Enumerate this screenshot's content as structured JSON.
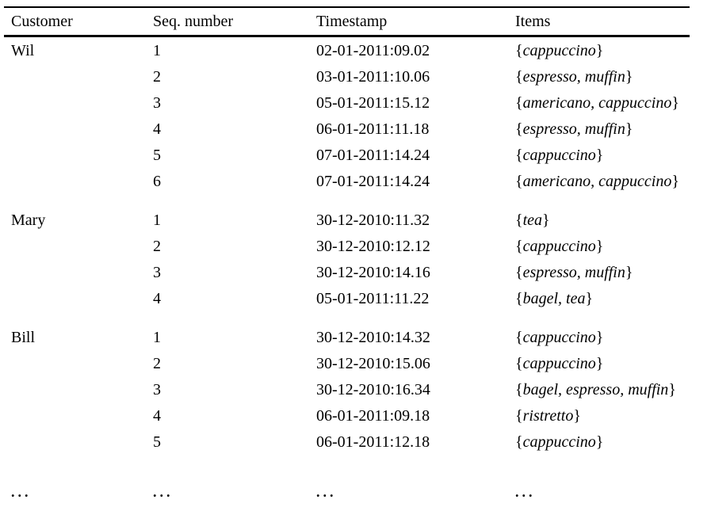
{
  "page": {
    "background": "#ffffff",
    "text_color": "#000000",
    "rule_color": "#000000"
  },
  "table": {
    "columns": [
      {
        "key": "customer",
        "label": "Customer"
      },
      {
        "key": "seq",
        "label": "Seq. number"
      },
      {
        "key": "timestamp",
        "label": "Timestamp"
      },
      {
        "key": "items",
        "label": "Items"
      }
    ],
    "brace_open": "{",
    "brace_close": "}",
    "groups": [
      {
        "customer": "Wil",
        "rows": [
          {
            "seq": "1",
            "timestamp": "02-01-2011:09.02",
            "items": "cappuccino"
          },
          {
            "seq": "2",
            "timestamp": "03-01-2011:10.06",
            "items": "espresso, muffin"
          },
          {
            "seq": "3",
            "timestamp": "05-01-2011:15.12",
            "items": "americano, cappuccino"
          },
          {
            "seq": "4",
            "timestamp": "06-01-2011:11.18",
            "items": "espresso, muffin"
          },
          {
            "seq": "5",
            "timestamp": "07-01-2011:14.24",
            "items": "cappuccino"
          },
          {
            "seq": "6",
            "timestamp": "07-01-2011:14.24",
            "items": "americano, cappuccino"
          }
        ]
      },
      {
        "customer": "Mary",
        "rows": [
          {
            "seq": "1",
            "timestamp": "30-12-2010:11.32",
            "items": "tea"
          },
          {
            "seq": "2",
            "timestamp": "30-12-2010:12.12",
            "items": "cappuccino"
          },
          {
            "seq": "3",
            "timestamp": "30-12-2010:14.16",
            "items": "espresso, muffin"
          },
          {
            "seq": "4",
            "timestamp": "05-01-2011:11.22",
            "items": "bagel, tea"
          }
        ]
      },
      {
        "customer": "Bill",
        "rows": [
          {
            "seq": "1",
            "timestamp": "30-12-2010:14.32",
            "items": "cappuccino"
          },
          {
            "seq": "2",
            "timestamp": "30-12-2010:15.06",
            "items": "cappuccino"
          },
          {
            "seq": "3",
            "timestamp": "30-12-2010:16.34",
            "items": "bagel, espresso, muffin"
          },
          {
            "seq": "4",
            "timestamp": "06-01-2011:09.18",
            "items": "ristretto"
          },
          {
            "seq": "5",
            "timestamp": "06-01-2011:12.18",
            "items": "cappuccino"
          }
        ]
      }
    ],
    "ellipsis": "..."
  }
}
